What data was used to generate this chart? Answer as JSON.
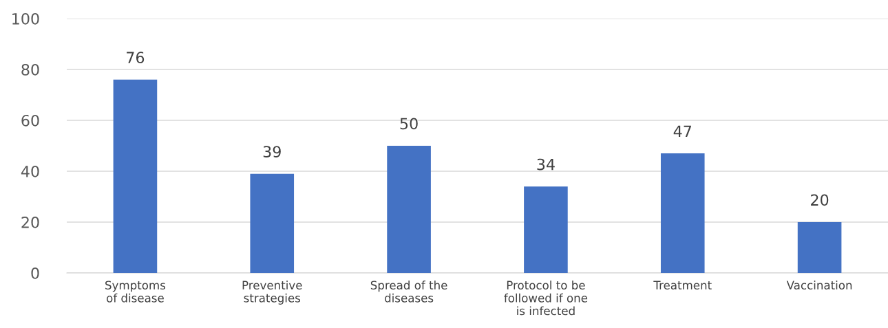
{
  "chart_data": {
    "type": "bar",
    "categories": [
      "Symptoms\nof disease",
      "Preventive\nstrategies",
      "Spread of the\ndiseases",
      "Protocol to be\nfollowed if one\nis infected",
      "Treatment",
      "Vaccination"
    ],
    "values": [
      76,
      39,
      50,
      34,
      47,
      20
    ],
    "color": "#4472c4",
    "ylim": [
      0,
      100
    ],
    "yticks": [
      0,
      20,
      40,
      60,
      80,
      100
    ],
    "grid": "y",
    "data_labels": true
  }
}
